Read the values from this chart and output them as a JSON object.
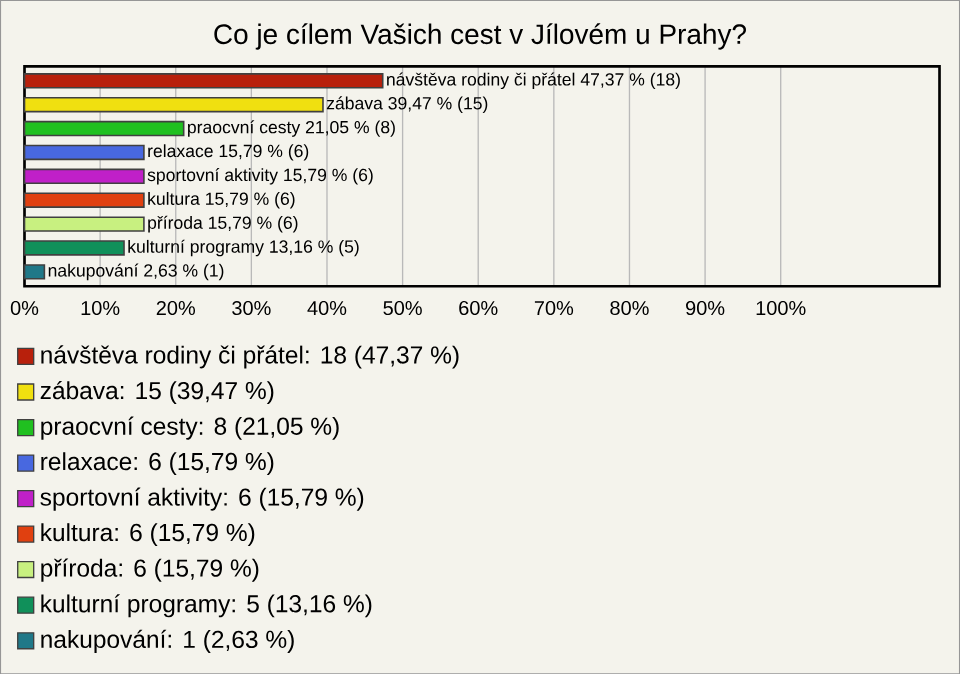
{
  "chart_data": {
    "type": "bar",
    "orientation": "horizontal",
    "title": "Co je cílem Vašich cest v Jílovém u Prahy?",
    "categories": [
      null,
      null,
      null,
      null,
      null,
      null,
      null,
      null,
      null
    ],
    "series": [
      {
        "name": "návštěva rodiny či přátel: 18 (47,37 %)",
        "color": "#b8200c",
        "values": [
          47.37,
          null,
          null,
          null,
          null,
          null,
          null,
          null,
          null
        ],
        "value_labels": [
          "návštěva rodiny či přátel 47,37 % (18)",
          null,
          null,
          null,
          null,
          null,
          null,
          null,
          null
        ]
      },
      {
        "name": "zábava: 15 (39,47 %)",
        "color": "#f0e010",
        "values": [
          null,
          39.47,
          null,
          null,
          null,
          null,
          null,
          null,
          null
        ],
        "value_labels": [
          null,
          "zábava 39,47 % (15)",
          null,
          null,
          null,
          null,
          null,
          null,
          null
        ]
      },
      {
        "name": "praocvní cesty: 8 (21,05 %)",
        "color": "#20c020",
        "values": [
          null,
          null,
          21.05,
          null,
          null,
          null,
          null,
          null,
          null
        ],
        "value_labels": [
          null,
          null,
          "praocvní cesty 21,05 % (8)",
          null,
          null,
          null,
          null,
          null,
          null
        ]
      },
      {
        "name": "relaxace: 6 (15,79 %)",
        "color": "#4868e0",
        "values": [
          null,
          null,
          null,
          15.79,
          null,
          null,
          null,
          null,
          null
        ],
        "value_labels": [
          null,
          null,
          null,
          "relaxace 15,79 % (6)",
          null,
          null,
          null,
          null,
          null
        ]
      },
      {
        "name": "sportovní aktivity: 6 (15,79 %)",
        "color": "#c020c8",
        "values": [
          null,
          null,
          null,
          null,
          15.79,
          null,
          null,
          null,
          null
        ],
        "value_labels": [
          null,
          null,
          null,
          null,
          "sportovní aktivity 15,79 % (6)",
          null,
          null,
          null,
          null
        ]
      },
      {
        "name": "kultura: 6 (15,79 %)",
        "color": "#e04010",
        "values": [
          null,
          null,
          null,
          null,
          null,
          15.79,
          null,
          null,
          null
        ],
        "value_labels": [
          null,
          null,
          null,
          null,
          null,
          "kultura 15,79 % (6)",
          null,
          null,
          null
        ]
      },
      {
        "name": "příroda: 6 (15,79 %)",
        "color": "#c8f080",
        "values": [
          null,
          null,
          null,
          null,
          null,
          null,
          15.79,
          null,
          null
        ],
        "value_labels": [
          null,
          null,
          null,
          null,
          null,
          null,
          "příroda 15,79 % (6)",
          null,
          null
        ]
      },
      {
        "name": "kulturní programy: 5 (13,16 %)",
        "color": "#10905a",
        "values": [
          null,
          null,
          null,
          null,
          null,
          null,
          null,
          13.16,
          null
        ],
        "value_labels": [
          null,
          null,
          null,
          null,
          null,
          null,
          null,
          "kulturní programy 13,16 % (5)",
          null
        ]
      },
      {
        "name": "nakupování: 1 (2,63 %)",
        "color": "#207888",
        "values": [
          null,
          null,
          null,
          null,
          null,
          null,
          null,
          null,
          2.63
        ],
        "value_labels": [
          null,
          null,
          null,
          null,
          null,
          null,
          null,
          null,
          "nakupování 2,63 % (1)"
        ]
      }
    ],
    "xlim": [
      0,
      121
    ],
    "xticks": [
      {
        "value": 0,
        "label": "0%"
      },
      {
        "value": 10,
        "label": "10%"
      },
      {
        "value": 20,
        "label": "20%"
      },
      {
        "value": 30,
        "label": "30%"
      },
      {
        "value": 40,
        "label": "40%"
      },
      {
        "value": 50,
        "label": "50%"
      },
      {
        "value": 60,
        "label": "60%"
      },
      {
        "value": 70,
        "label": "70%"
      },
      {
        "value": 80,
        "label": "80%"
      },
      {
        "value": 90,
        "label": "90%"
      },
      {
        "value": 100,
        "label": "100%"
      }
    ],
    "grid": "x",
    "legend": "bottom"
  }
}
